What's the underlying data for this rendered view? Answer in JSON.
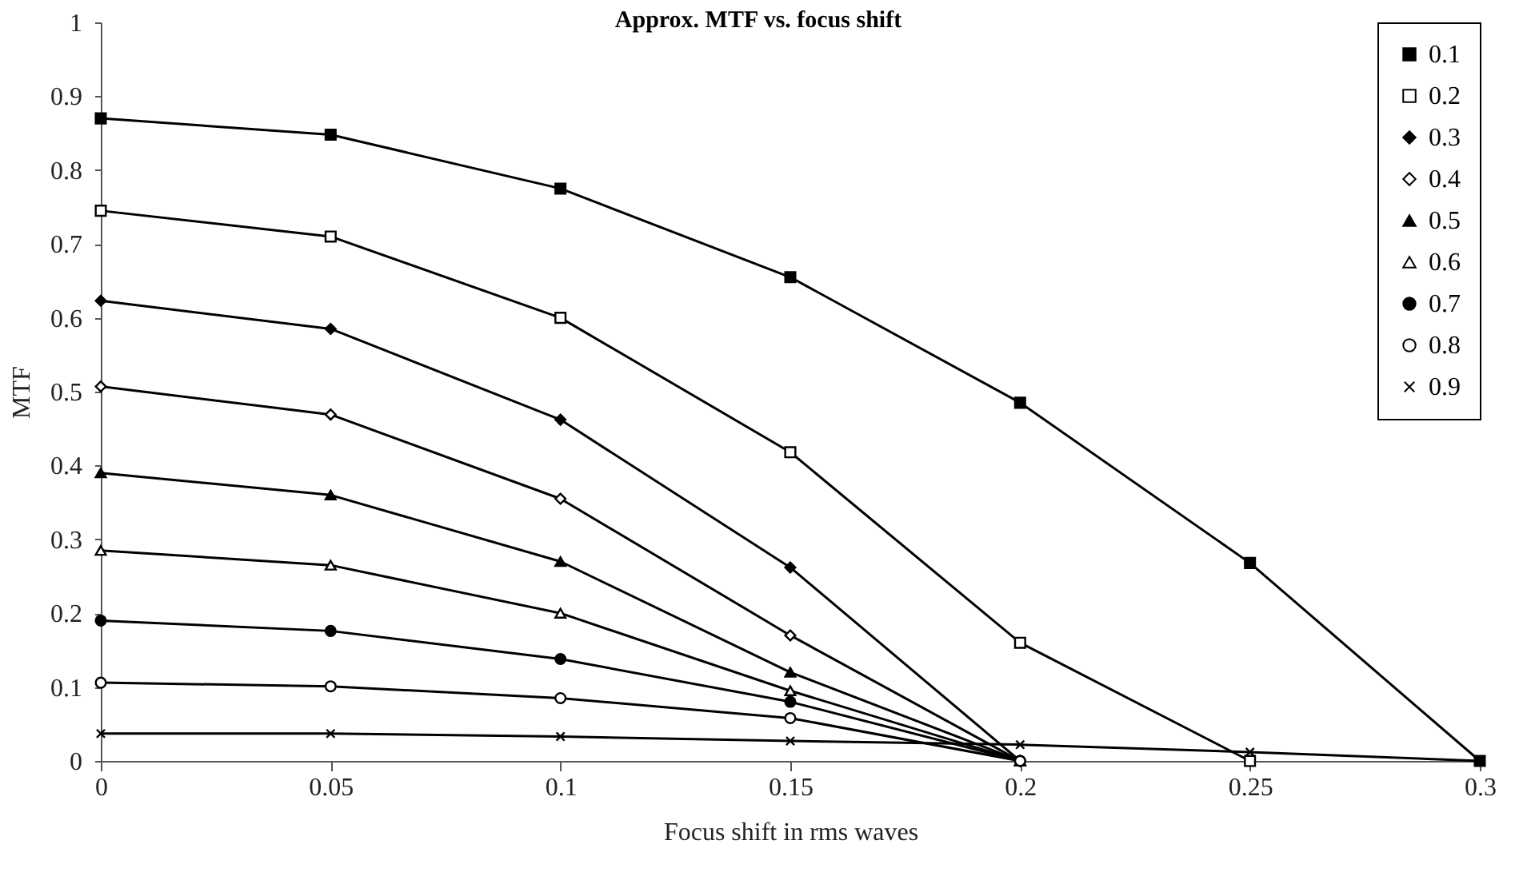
{
  "chart_data": {
    "type": "line",
    "title": "Approx. MTF vs. focus shift",
    "xlabel": "Focus shift in rms waves",
    "ylabel": "MTF",
    "x": [
      0,
      0.05,
      0.1,
      0.15,
      0.2,
      0.25,
      0.3
    ],
    "series": [
      {
        "name": "0.1",
        "color": "#000000",
        "marker": "square",
        "values": [
          0.87,
          0.848,
          0.775,
          0.655,
          0.485,
          0.268,
          0
        ]
      },
      {
        "name": "0.2",
        "color": "#000000",
        "marker": "square",
        "values": [
          0.745,
          0.71,
          0.6,
          0.418,
          0.16,
          0,
          null
        ]
      },
      {
        "name": "0.3",
        "color": "#000000",
        "marker": "diamond",
        "values": [
          0.623,
          0.585,
          0.462,
          0.262,
          0,
          null,
          null
        ]
      },
      {
        "name": "0.4",
        "color": "#000000",
        "marker": "diamond",
        "values": [
          0.507,
          0.469,
          0.355,
          0.17,
          0,
          null,
          null
        ]
      },
      {
        "name": "0.5",
        "color": "#000000",
        "marker": "triangle",
        "values": [
          0.39,
          0.36,
          0.27,
          0.12,
          0,
          null,
          null
        ]
      },
      {
        "name": "0.6",
        "color": "#000000",
        "marker": "triangle",
        "values": [
          0.285,
          0.265,
          0.2,
          0.095,
          0,
          null,
          null
        ]
      },
      {
        "name": "0.7",
        "color": "#000000",
        "marker": "circle",
        "values": [
          0.19,
          0.176,
          0.138,
          0.08,
          0,
          null,
          null
        ]
      },
      {
        "name": "0.8",
        "color": "#000000",
        "marker": "circle",
        "values": [
          0.106,
          0.101,
          0.085,
          0.058,
          0,
          null,
          null
        ]
      },
      {
        "name": "0.9",
        "color": "#000000",
        "marker": "cross",
        "values": [
          0.037,
          0.037,
          0.033,
          0.027,
          0.022,
          0.012,
          0
        ]
      }
    ],
    "xlim": [
      0,
      0.3
    ],
    "xticks": [
      0,
      0.05,
      0.1,
      0.15,
      0.2,
      0.25,
      0.3
    ],
    "ylim": [
      0,
      1
    ],
    "yticks": [
      0,
      0.1,
      0.2,
      0.3,
      0.4,
      0.5,
      0.6,
      0.7,
      0.8,
      0.9,
      1
    ],
    "grid": false,
    "legend": "top right",
    "line_style": "solid"
  }
}
